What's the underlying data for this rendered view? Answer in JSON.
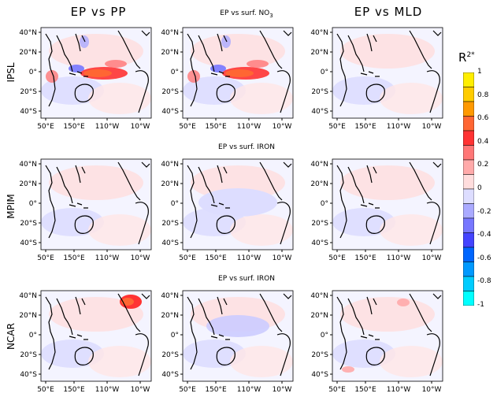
{
  "titles": {
    "col1": "EP vs PP",
    "col2_row1_pre": "EP vs surf. NO",
    "col2_row1_sub": "3",
    "col2_row2": "EP vs surf. IRON",
    "col2_row3": "EP vs surf. IRON",
    "col3": "EP vs MLD"
  },
  "rows": [
    "IPSL",
    "MPIM",
    "NCAR"
  ],
  "lat_labels": [
    "40°N",
    "20°N",
    "0°",
    "20°S",
    "40°S"
  ],
  "lon_labels": [
    "50°E",
    "150°E",
    "110°W",
    "10°W"
  ],
  "colorbar": {
    "title": "R",
    "title_sup": "2*",
    "ticks": [
      "1",
      "0.8",
      "0.6",
      "0.4",
      "0.2",
      "0",
      "-0.2",
      "-0.4",
      "-0.6",
      "-0.8",
      "-1"
    ],
    "colors": [
      "#ffee00",
      "#ffcc00",
      "#ff9900",
      "#ff6633",
      "#ff3333",
      "#ff7777",
      "#ffaaaa",
      "#ffdddd",
      "#ddddff",
      "#aaaaff",
      "#7777ff",
      "#4444ff",
      "#0066ff",
      "#0099ff",
      "#00ccff",
      "#00ffff"
    ]
  },
  "chart_data": {
    "type": "heatmap",
    "description_rows": [
      "IPSL",
      "MPIM",
      "NCAR"
    ],
    "columns": [
      "EP vs PP",
      "EP vs surf. NO3 / surf. IRON",
      "EP vs MLD"
    ],
    "lat_ticks": [
      "40°N",
      "20°N",
      "0°",
      "20°S",
      "40°S"
    ],
    "lon_ticks": [
      "50°E",
      "150°E",
      "110°W",
      "10°W"
    ],
    "color_scale": {
      "label": "R2*",
      "min": -1,
      "max": 1,
      "step": 0.2
    },
    "dominant_pattern": {
      "IPSL_PP": "strong positive (0.4-0.6) in equatorial Pacific, weak negative west Pacific",
      "IPSL_NO3": "strong positive (0.4-0.6) in equatorial Pacific",
      "IPSL_MLD": "weak positive/negative near 0",
      "MPIM_PP": "weak, mostly near 0",
      "MPIM_IRON": "weak negative",
      "MPIM_MLD": "weak, near 0",
      "NCAR_PP": "strong positive (0.4-0.6) in North Pacific ~40°N",
      "NCAR_IRON": "weak negative",
      "NCAR_MLD": "weak positive"
    }
  }
}
